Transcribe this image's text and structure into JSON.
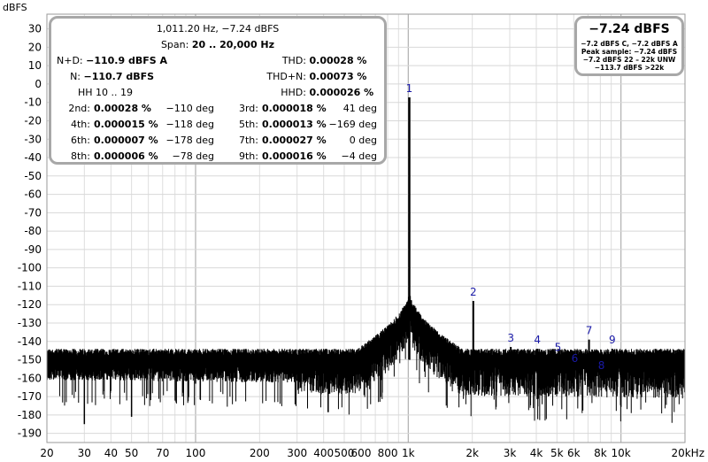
{
  "chart_data": {
    "type": "line",
    "ylabel": "dBFS",
    "xscale": "log",
    "xlim": [
      20,
      20000
    ],
    "ylim": [
      -195,
      38
    ],
    "y_ticks": [
      30,
      20,
      10,
      0,
      -10,
      -20,
      -30,
      -40,
      -50,
      -60,
      -70,
      -80,
      -90,
      -100,
      -110,
      -120,
      -130,
      -140,
      -150,
      -160,
      -170,
      -180,
      -190
    ],
    "x_ticks": [
      {
        "v": 20,
        "label": "20"
      },
      {
        "v": 30,
        "label": "30"
      },
      {
        "v": 40,
        "label": "40"
      },
      {
        "v": 50,
        "label": "50"
      },
      {
        "v": 70,
        "label": "70"
      },
      {
        "v": 100,
        "label": "100"
      },
      {
        "v": 200,
        "label": "200"
      },
      {
        "v": 300,
        "label": "300"
      },
      {
        "v": 400,
        "label": "400"
      },
      {
        "v": 500,
        "label": "500"
      },
      {
        "v": 600,
        "label": "600"
      },
      {
        "v": 800,
        "label": "800"
      },
      {
        "v": 1000,
        "label": "1k"
      },
      {
        "v": 2000,
        "label": "2k"
      },
      {
        "v": 3000,
        "label": "3k"
      },
      {
        "v": 4000,
        "label": "4k"
      },
      {
        "v": 5000,
        "label": "5k"
      },
      {
        "v": 6000,
        "label": "6k"
      },
      {
        "v": 8000,
        "label": "8k"
      },
      {
        "v": 10000,
        "label": "10k"
      },
      {
        "v": 20000,
        "label": "20kHz"
      }
    ],
    "grid": true,
    "series_color": "#000000",
    "marker_color": "#1a1aa8",
    "fundamental": {
      "freq": 1011.2,
      "level": -7.24
    },
    "noise_floor": {
      "from_db": -151,
      "to_db": -155,
      "skirt_db": -117
    },
    "spurs": [
      {
        "freq": 30,
        "level": -185
      },
      {
        "freq": 50,
        "level": -181
      },
      {
        "freq": 100,
        "level": -163
      }
    ],
    "harmonics": [
      {
        "label": "1",
        "freq": 1011.2,
        "level": -7.24
      },
      {
        "label": "2",
        "freq": 2022,
        "level": -118
      },
      {
        "label": "3",
        "freq": 3034,
        "level": -143
      },
      {
        "label": "4",
        "freq": 4045,
        "level": -144
      },
      {
        "label": "5",
        "freq": 5056,
        "level": -148
      },
      {
        "label": "6",
        "freq": 6067,
        "level": -154
      },
      {
        "label": "7",
        "freq": 7078,
        "level": -139
      },
      {
        "label": "8",
        "freq": 8090,
        "level": -158
      },
      {
        "label": "9",
        "freq": 9101,
        "level": -144
      }
    ]
  },
  "info": {
    "title": "1,011.20 Hz, −7.24 dBFS",
    "span_label": "Span:",
    "span_value": "20 .. 20,000 Hz",
    "nd_label": "N+D:",
    "nd_value": "−110.9 dBFS A",
    "thd_label": "THD:",
    "thd_value": "0.00028 %",
    "n_label": "N:",
    "n_value": "−110.7 dBFS",
    "thdn_label": "THD+N:",
    "thdn_value": "0.00073 %",
    "hh_range": "HH 10 .. 19",
    "hhd_label": "HHD:",
    "hhd_value": "0.000026 %",
    "rows": [
      {
        "l1": "2nd:",
        "v1": "0.00028 %",
        "p1": "−110 deg",
        "l2": "3rd:",
        "v2": "0.000018 %",
        "p2": "41 deg"
      },
      {
        "l1": "4th:",
        "v1": "0.000015 %",
        "p1": "−118 deg",
        "l2": "5th:",
        "v2": "0.000013 %",
        "p2": "−169 deg"
      },
      {
        "l1": "6th:",
        "v1": "0.000007 %",
        "p1": "−178 deg",
        "l2": "7th:",
        "v2": "0.000027 %",
        "p2": "0 deg"
      },
      {
        "l1": "8th:",
        "v1": "0.000006 %",
        "p1": "−78 deg",
        "l2": "9th:",
        "v2": "0.000016 %",
        "p2": "−4 deg"
      }
    ]
  },
  "level": {
    "big": "−7.24 dBFS",
    "line1": "−7.2 dBFS C, −7.2 dBFS A",
    "line2": "Peak sample: −7.24 dBFS",
    "line3": "−7.2 dBFS 22 – 22k UNW",
    "line4": "−113.7 dBFS >22k"
  }
}
